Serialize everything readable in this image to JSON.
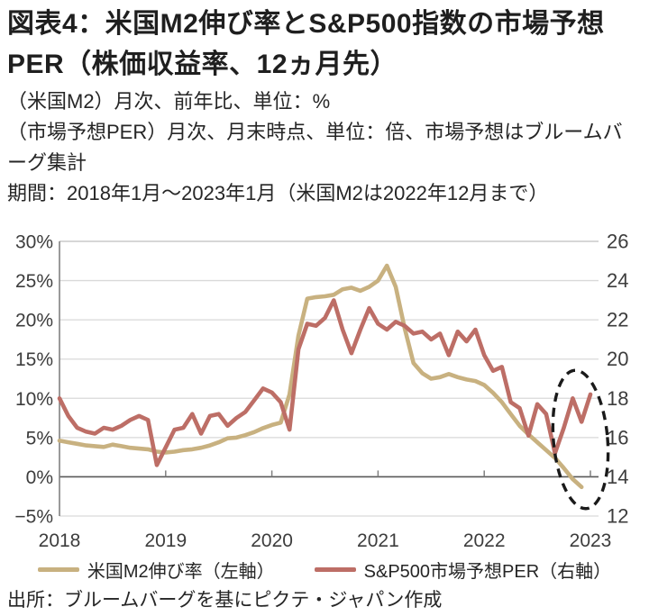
{
  "page": {
    "title_line1": "図表4：米国M2伸び率とS&P500指数の市場予想",
    "title_line2": "PER（株価収益率、12ヵ月先）",
    "subtitle_m2": "（米国M2）月次、前年比、単位：%",
    "subtitle_per": "（市場予想PER）月次、月末時点、単位：倍、市場予想はブルームバーグ集計",
    "period": "期間：2018年1月～2023年1月（米国M2は2022年12月まで）",
    "source": "出所：ブルームバーグを基にピクテ・ジャパン作成"
  },
  "chart_data": {
    "type": "line",
    "title": "米国M2伸び率とS&P500指数の市場予想PER",
    "x_year_labels": [
      "2018",
      "2019",
      "2020",
      "2021",
      "2022",
      "2023"
    ],
    "left_axis": {
      "unit": "%",
      "tick_labels": [
        "30%",
        "25%",
        "20%",
        "15%",
        "10%",
        "5%",
        "0%",
        "−5%"
      ],
      "tick_values": [
        30,
        25,
        20,
        15,
        10,
        5,
        0,
        -5
      ],
      "range": [
        -5,
        30
      ]
    },
    "right_axis": {
      "unit": "倍",
      "tick_labels": [
        "26",
        "24",
        "22",
        "20",
        "18",
        "16",
        "14",
        "12"
      ],
      "tick_values": [
        26,
        24,
        22,
        20,
        18,
        16,
        14,
        12
      ],
      "range": [
        12,
        26
      ]
    },
    "grid": true,
    "legend_position": "bottom",
    "series": [
      {
        "name": "米国M2伸び率（左軸）",
        "axis": "left",
        "color": "#C8B180",
        "start": "2018-01",
        "frequency": "monthly",
        "values": [
          4.6,
          4.4,
          4.2,
          4.0,
          3.9,
          3.8,
          4.1,
          3.9,
          3.7,
          3.6,
          3.5,
          3.2,
          3.1,
          3.2,
          3.4,
          3.5,
          3.7,
          4.0,
          4.4,
          4.9,
          5.0,
          5.3,
          5.7,
          6.2,
          6.6,
          6.9,
          10.5,
          18.0,
          22.7,
          22.9,
          23.0,
          23.2,
          23.9,
          24.1,
          23.7,
          24.2,
          25.0,
          26.9,
          24.2,
          19.0,
          14.5,
          13.2,
          12.5,
          12.7,
          13.1,
          12.7,
          12.4,
          12.2,
          11.7,
          10.7,
          9.5,
          8.0,
          6.5,
          5.4,
          4.4,
          3.4,
          2.4,
          1.1,
          -0.3,
          -1.3
        ]
      },
      {
        "name": "S&P500市場予想PER（右軸）",
        "axis": "right",
        "color": "#BD6E66",
        "start": "2018-01",
        "frequency": "monthly",
        "values": [
          18.0,
          17.1,
          16.5,
          16.3,
          16.2,
          16.5,
          16.4,
          16.6,
          16.9,
          17.1,
          16.9,
          14.6,
          15.5,
          16.4,
          16.5,
          17.2,
          16.2,
          17.1,
          17.2,
          16.6,
          17.0,
          17.3,
          17.9,
          18.5,
          18.3,
          17.8,
          16.4,
          20.5,
          21.8,
          21.7,
          22.1,
          23.0,
          21.5,
          20.3,
          21.5,
          22.6,
          21.8,
          21.5,
          21.9,
          21.7,
          21.3,
          21.4,
          21.0,
          21.3,
          20.2,
          21.4,
          20.9,
          21.5,
          20.2,
          19.4,
          19.6,
          17.8,
          17.5,
          16.1,
          17.7,
          17.2,
          15.2,
          16.5,
          18.0,
          16.8,
          18.2
        ]
      }
    ],
    "annotation": {
      "shape": "dashed-ellipse",
      "color": "#1A1A1A",
      "note": "2022年後半から2023年1月の局面を強調"
    },
    "colors": {
      "grid": "#D9D9D9",
      "grid_top": "#BFBFBF",
      "zero_line": "#595959",
      "axis_line": "#808080",
      "tick_label": "#3D3D3D"
    }
  }
}
